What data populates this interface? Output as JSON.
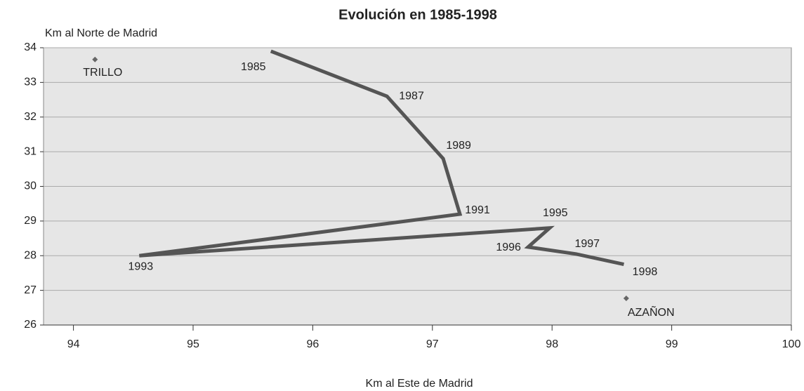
{
  "chart_data": {
    "type": "line",
    "title": "Evolución en 1985-1998",
    "y_label": "Km al Norte de Madrid",
    "x_label": "Km al Este de Madrid",
    "xlim": [
      93.75,
      100
    ],
    "xticks": [
      94,
      95,
      96,
      97,
      98,
      99,
      100
    ],
    "ylim": [
      26,
      34
    ],
    "yticks": [
      26,
      27,
      28,
      29,
      30,
      31,
      32,
      33,
      34
    ],
    "grid": true,
    "series": [
      {
        "color": "#555555",
        "x": [
          95.65,
          96.62,
          97.09,
          97.23,
          94.55,
          97.98,
          97.8,
          98.2,
          98.6
        ],
        "values": [
          33.9,
          32.6,
          30.8,
          29.2,
          28.0,
          28.8,
          28.25,
          28.05,
          27.75
        ],
        "labels": [
          "1985",
          "1987",
          "1989",
          "1991",
          "1993",
          "1995",
          "1996",
          "1997",
          "1998"
        ]
      }
    ],
    "points": [
      {
        "label": "TRILLO",
        "x": 94.18,
        "y": 33.66,
        "color": "#666666"
      },
      {
        "label": "AZAÑON",
        "x": 98.62,
        "y": 26.77,
        "color": "#666666"
      }
    ]
  }
}
